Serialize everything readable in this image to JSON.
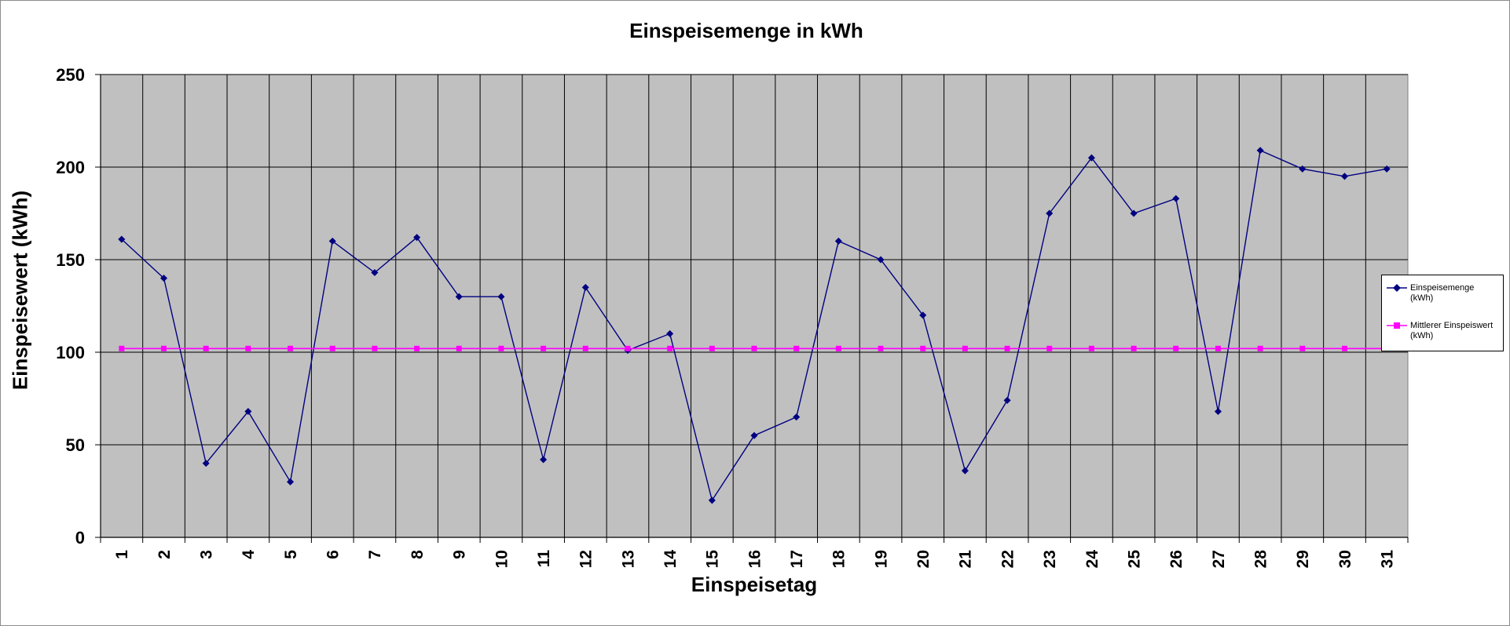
{
  "chart_data": {
    "type": "line",
    "title": "Einspeisemenge in kWh",
    "xlabel": "Einspeisetag",
    "ylabel": "Einspeisewert  (kWh)",
    "ylim": [
      0,
      250
    ],
    "yticks": [
      "0",
      "50",
      "100",
      "150",
      "200",
      "250"
    ],
    "categories": [
      "1",
      "2",
      "3",
      "4",
      "5",
      "6",
      "7",
      "8",
      "9",
      "10",
      "11",
      "12",
      "13",
      "14",
      "15",
      "16",
      "17",
      "18",
      "19",
      "20",
      "21",
      "22",
      "23",
      "24",
      "25",
      "26",
      "27",
      "28",
      "29",
      "30",
      "31"
    ],
    "grid": true,
    "legend_position": "right",
    "plot_background": "#c0c0c0",
    "series": [
      {
        "name": "Einspeisemenge (kWh)",
        "color": "#000080",
        "marker": "diamond",
        "values": [
          161,
          140,
          40,
          68,
          30,
          160,
          143,
          162,
          130,
          130,
          42,
          135,
          101,
          110,
          20,
          55,
          65,
          160,
          150,
          120,
          36,
          74,
          175,
          205,
          175,
          183,
          68,
          209,
          199,
          195,
          199
        ]
      },
      {
        "name": "Mittlerer Einspeiswert (kWh)",
        "color": "#ff00ff",
        "marker": "square",
        "values": [
          102,
          102,
          102,
          102,
          102,
          102,
          102,
          102,
          102,
          102,
          102,
          102,
          102,
          102,
          102,
          102,
          102,
          102,
          102,
          102,
          102,
          102,
          102,
          102,
          102,
          102,
          102,
          102,
          102,
          102,
          102
        ]
      }
    ]
  },
  "legend": {
    "items": [
      {
        "line1": "Einspeisemenge",
        "line2": "(kWh)"
      },
      {
        "line1": "Mittlerer Einspeiswert",
        "line2": "(kWh)"
      }
    ]
  }
}
